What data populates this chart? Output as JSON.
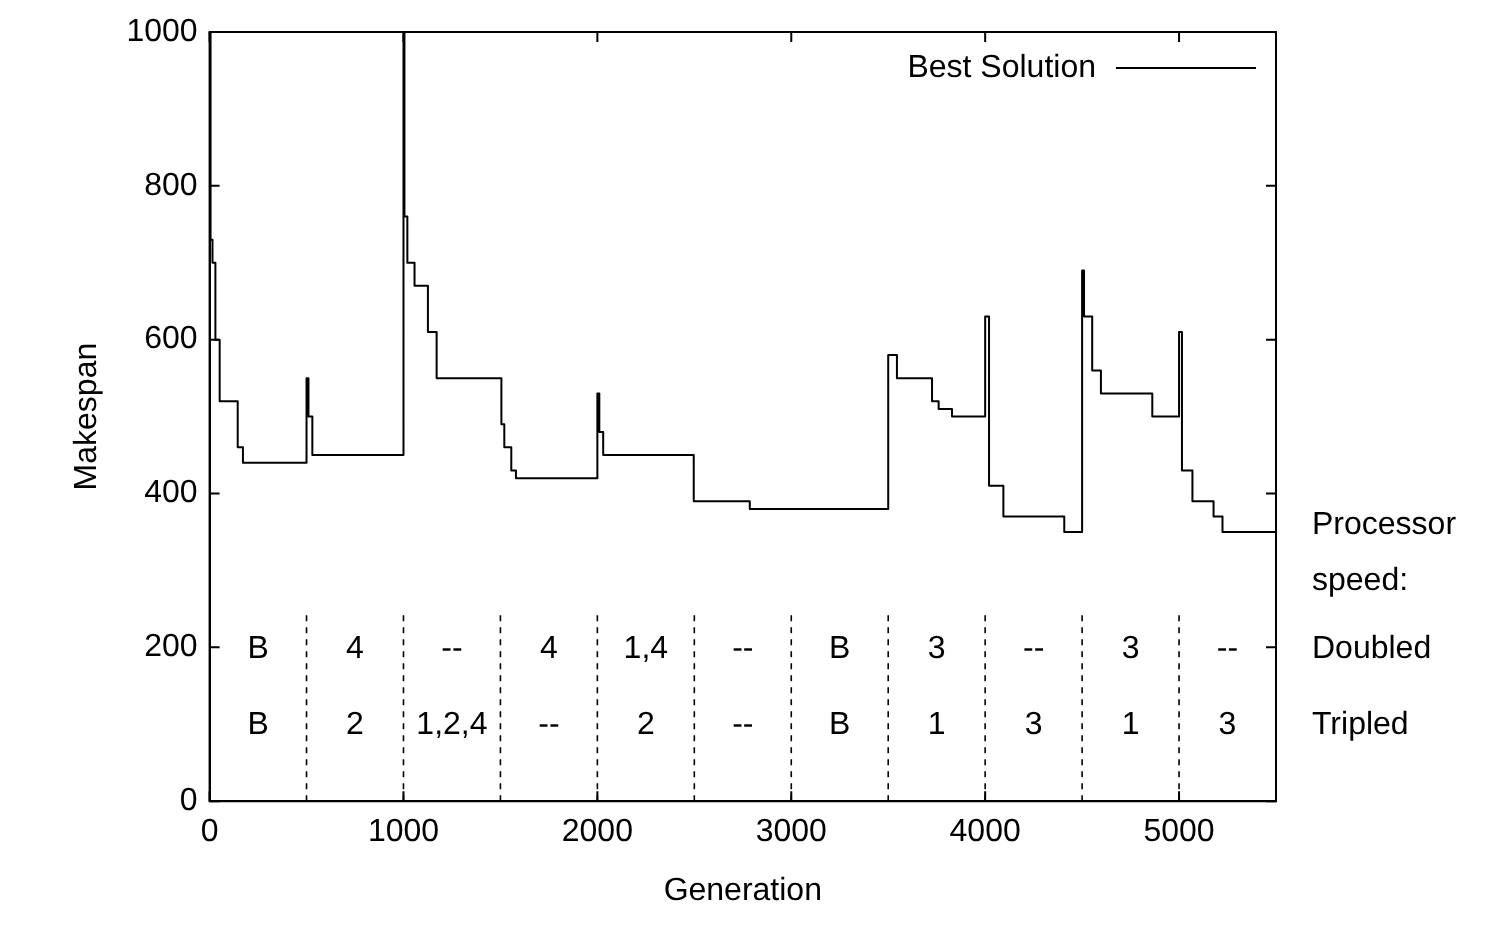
{
  "chart_data": {
    "type": "step",
    "xlabel": "Generation",
    "ylabel": "Makespan",
    "xlim": [
      0,
      5500
    ],
    "xticks": [
      0,
      1000,
      2000,
      3000,
      4000,
      5000
    ],
    "ylim": [
      0,
      1000
    ],
    "yticks": [
      0,
      200,
      400,
      600,
      800,
      1000
    ],
    "grid": false,
    "legend": "top right",
    "line_style": "solid",
    "marker": "none",
    "series": [
      {
        "name": "Best Solution",
        "color": "#000000",
        "x": [
          0,
          5,
          15,
          30,
          52,
          145,
          172,
          500,
          510,
          530,
          1000,
          1005,
          1020,
          1057,
          1126,
          1171,
          1505,
          1520,
          1556,
          1580,
          2000,
          2010,
          2030,
          2497,
          2786,
          3500,
          3545,
          3726,
          3760,
          3829,
          4000,
          4020,
          4094,
          4408,
          4500,
          4510,
          4552,
          4597,
          4862,
          5000,
          5015,
          5069,
          5178,
          5224,
          5500
        ],
        "values": [
          1000,
          730,
          700,
          600,
          520,
          460,
          440,
          550,
          500,
          450,
          1000,
          760,
          700,
          670,
          610,
          550,
          490,
          460,
          430,
          420,
          530,
          480,
          450,
          390,
          380,
          580,
          550,
          520,
          510,
          500,
          630,
          410,
          370,
          350,
          690,
          630,
          560,
          530,
          500,
          610,
          430,
          390,
          370,
          350,
          350
        ]
      }
    ],
    "ref_lines": [
      {
        "axis": "x",
        "value": 500,
        "line_style": "dashed"
      },
      {
        "axis": "x",
        "value": 1000,
        "line_style": "dashed"
      },
      {
        "axis": "x",
        "value": 1500,
        "line_style": "dashed"
      },
      {
        "axis": "x",
        "value": 2000,
        "line_style": "dashed"
      },
      {
        "axis": "x",
        "value": 2500,
        "line_style": "dashed"
      },
      {
        "axis": "x",
        "value": 3000,
        "line_style": "dashed"
      },
      {
        "axis": "x",
        "value": 3500,
        "line_style": "dashed"
      },
      {
        "axis": "x",
        "value": 4000,
        "line_style": "dashed"
      },
      {
        "axis": "x",
        "value": 4500,
        "line_style": "dashed"
      },
      {
        "axis": "x",
        "value": 5000,
        "line_style": "dashed"
      }
    ],
    "annotations": [
      "Processor speed:",
      "Doubled",
      "B",
      "4",
      "--",
      "4",
      "1,4",
      "--",
      "B",
      "3",
      "--",
      "3",
      "--",
      "Tripled",
      "B",
      "2",
      "1,2,4",
      "--",
      "2",
      "--",
      "B",
      "1",
      "3",
      "1",
      "3"
    ]
  }
}
